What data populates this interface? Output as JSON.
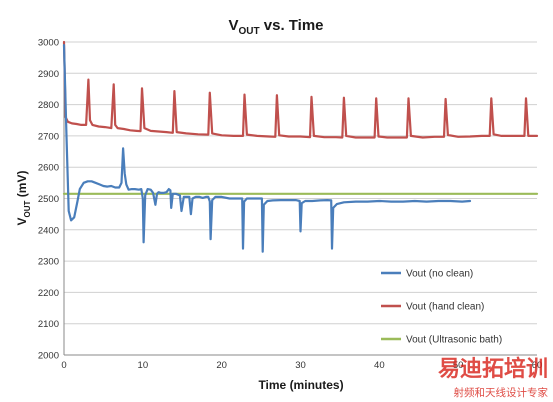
{
  "chart_data": {
    "type": "line",
    "title": "V",
    "title_sub": "OUT",
    "title_rest": " vs. Time",
    "xlabel": "Time (minutes)",
    "ylabel_main": "V",
    "ylabel_sub": "OUT",
    "ylabel_rest": " (mV)",
    "xlim": [
      0,
      60
    ],
    "ylim": [
      2000,
      3000
    ],
    "xticks": [
      0,
      10,
      20,
      30,
      40,
      50,
      60
    ],
    "yticks": [
      2000,
      2100,
      2200,
      2300,
      2400,
      2500,
      2600,
      2700,
      2800,
      2900,
      3000
    ],
    "grid": "horizontal",
    "legend_position": "bottom-right",
    "series": [
      {
        "name": "Vout (no clean)",
        "color": "#4a7ebb",
        "x": [
          0.0,
          0.3,
          0.6,
          0.9,
          1.3,
          1.7,
          2.0,
          2.5,
          3.0,
          3.5,
          4.0,
          4.5,
          5.0,
          5.5,
          6.0,
          6.5,
          7.0,
          7.3,
          7.5,
          7.7,
          7.9,
          8.2,
          8.6,
          9.0,
          9.5,
          9.8,
          10.0,
          10.1,
          10.3,
          10.6,
          11.0,
          11.3,
          11.6,
          11.8,
          12.0,
          12.3,
          12.6,
          13.0,
          13.3,
          13.5,
          13.6,
          13.8,
          14.2,
          14.5,
          14.7,
          14.9,
          15.2,
          15.6,
          15.9,
          16.1,
          16.3,
          16.7,
          17.2,
          17.6,
          18.0,
          18.3,
          18.5,
          18.6,
          18.8,
          19.2,
          20.0,
          21.0,
          22.0,
          22.6,
          22.7,
          22.85,
          23.2,
          23.8,
          24.5,
          25.1,
          25.2,
          25.35,
          25.8,
          26.5,
          27.5,
          28.5,
          29.4,
          29.9,
          30.0,
          30.15,
          30.6,
          31.5,
          32.5,
          33.4,
          33.9,
          34.0,
          34.15,
          34.6,
          35.5,
          37.0,
          38.5,
          40.0,
          41.5,
          43.0,
          44.5,
          46.0,
          47.5,
          49.0,
          50.5,
          51.5
        ],
        "y": [
          2990,
          2710,
          2460,
          2430,
          2440,
          2490,
          2530,
          2550,
          2555,
          2555,
          2550,
          2545,
          2540,
          2538,
          2540,
          2535,
          2535,
          2550,
          2660,
          2580,
          2545,
          2528,
          2530,
          2530,
          2528,
          2530,
          2500,
          2360,
          2510,
          2530,
          2528,
          2518,
          2480,
          2515,
          2520,
          2518,
          2518,
          2520,
          2530,
          2526,
          2470,
          2515,
          2515,
          2512,
          2510,
          2460,
          2505,
          2505,
          2505,
          2450,
          2500,
          2505,
          2505,
          2502,
          2505,
          2505,
          2490,
          2370,
          2495,
          2505,
          2505,
          2500,
          2500,
          2500,
          2340,
          2490,
          2500,
          2500,
          2500,
          2500,
          2330,
          2480,
          2492,
          2494,
          2495,
          2495,
          2495,
          2492,
          2395,
          2485,
          2492,
          2492,
          2494,
          2495,
          2494,
          2340,
          2470,
          2482,
          2488,
          2490,
          2490,
          2492,
          2490,
          2490,
          2492,
          2490,
          2492,
          2492,
          2490,
          2492
        ]
      },
      {
        "name": "Vout (hand clean)",
        "color": "#c0504d",
        "x": [
          0.0,
          0.2,
          0.5,
          1.0,
          1.6,
          2.2,
          2.8,
          3.1,
          3.3,
          3.6,
          4.4,
          5.2,
          6.0,
          6.3,
          6.5,
          6.8,
          7.6,
          8.4,
          9.2,
          9.7,
          9.9,
          10.2,
          11.0,
          12.0,
          13.0,
          13.8,
          14.0,
          14.3,
          15.5,
          17.0,
          18.3,
          18.5,
          18.8,
          20.0,
          21.5,
          22.7,
          22.9,
          23.2,
          24.5,
          26.0,
          26.8,
          27.0,
          27.3,
          28.5,
          30.0,
          31.2,
          31.4,
          31.7,
          33.0,
          34.5,
          35.3,
          35.5,
          35.8,
          37.0,
          38.6,
          39.4,
          39.6,
          39.9,
          41.0,
          42.6,
          43.5,
          43.7,
          44.0,
          45.5,
          47.0,
          48.2,
          48.4,
          48.7,
          50.0,
          51.5,
          53.0,
          54.0,
          54.2,
          54.5,
          55.5,
          57.0,
          58.4,
          58.6,
          58.9,
          60.0
        ],
        "y": [
          3000,
          2760,
          2745,
          2740,
          2738,
          2735,
          2735,
          2880,
          2750,
          2735,
          2730,
          2728,
          2725,
          2865,
          2735,
          2725,
          2722,
          2718,
          2716,
          2715,
          2852,
          2725,
          2716,
          2714,
          2712,
          2710,
          2843,
          2712,
          2708,
          2705,
          2704,
          2838,
          2708,
          2702,
          2700,
          2700,
          2832,
          2704,
          2700,
          2698,
          2697,
          2830,
          2702,
          2698,
          2698,
          2696,
          2825,
          2700,
          2696,
          2696,
          2695,
          2822,
          2700,
          2695,
          2695,
          2695,
          2820,
          2698,
          2695,
          2695,
          2695,
          2820,
          2700,
          2695,
          2697,
          2697,
          2818,
          2703,
          2697,
          2698,
          2700,
          2700,
          2820,
          2705,
          2700,
          2700,
          2700,
          2820,
          2700,
          2700
        ]
      },
      {
        "name": "Vout (Ultrasonic bath)",
        "color": "#9bbb59",
        "x": [
          0,
          60
        ],
        "y": [
          2515,
          2515
        ]
      }
    ]
  },
  "watermark": {
    "text": "易迪拓培训",
    "subtext": "射频和天线设计专家",
    "color": "#d9251d"
  }
}
